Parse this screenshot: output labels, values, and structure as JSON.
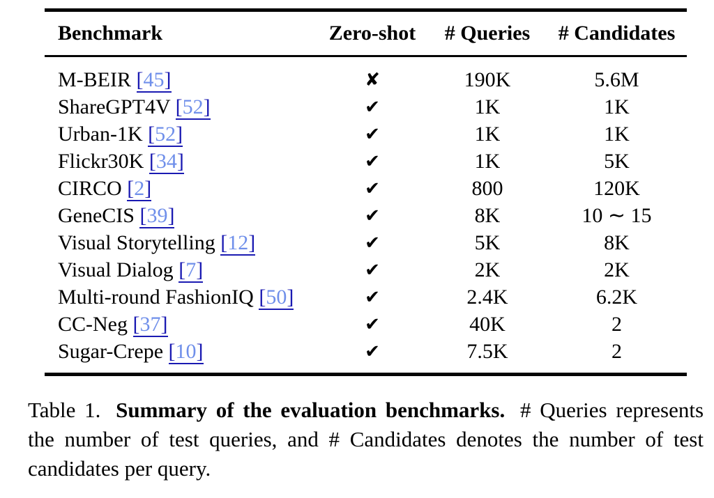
{
  "table": {
    "columns": [
      "Benchmark",
      "Zero-shot",
      "# Queries",
      "# Candidates"
    ],
    "marks": {
      "yes": "✔",
      "no": "✘"
    },
    "rows": [
      {
        "benchmark": "M-BEIR",
        "cite": "45",
        "zero_shot": false,
        "queries": "190K",
        "candidates": "5.6M"
      },
      {
        "benchmark": "ShareGPT4V",
        "cite": "52",
        "zero_shot": true,
        "queries": "1K",
        "candidates": "1K"
      },
      {
        "benchmark": "Urban-1K",
        "cite": "52",
        "zero_shot": true,
        "queries": "1K",
        "candidates": "1K"
      },
      {
        "benchmark": "Flickr30K",
        "cite": "34",
        "zero_shot": true,
        "queries": "1K",
        "candidates": "5K"
      },
      {
        "benchmark": "CIRCO",
        "cite": "2",
        "zero_shot": true,
        "queries": "800",
        "candidates": "120K"
      },
      {
        "benchmark": "GeneCIS",
        "cite": "39",
        "zero_shot": true,
        "queries": "8K",
        "candidates": "10 ∼ 15"
      },
      {
        "benchmark": "Visual Storytelling",
        "cite": "12",
        "zero_shot": true,
        "queries": "5K",
        "candidates": "8K"
      },
      {
        "benchmark": "Visual Dialog",
        "cite": "7",
        "zero_shot": true,
        "queries": "2K",
        "candidates": "2K"
      },
      {
        "benchmark": "Multi-round FashionIQ",
        "cite": "50",
        "zero_shot": true,
        "queries": "2.4K",
        "candidates": "6.2K"
      },
      {
        "benchmark": "CC-Neg",
        "cite": "37",
        "zero_shot": true,
        "queries": "40K",
        "candidates": "2"
      },
      {
        "benchmark": "Sugar-Crepe",
        "cite": "10",
        "zero_shot": true,
        "queries": "7.5K",
        "candidates": "2"
      }
    ],
    "bracket_open": "[",
    "bracket_close": "]"
  },
  "caption": {
    "label": "Table 1.",
    "bold": "Summary of the evaluation benchmarks.",
    "rest": "# Queries represents the number of test queries, and # Candidates denotes the number of test candidates per query."
  },
  "colors": {
    "text": "#000000",
    "citation_number": "#6f8fea",
    "citation_bracket": "#1a1ab2",
    "rule": "#050505",
    "background": "#ffffff"
  }
}
